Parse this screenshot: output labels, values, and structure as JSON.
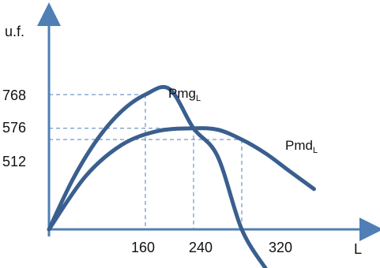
{
  "chart_data": {
    "type": "line",
    "ylabel": "u.f.",
    "xlabel": "L",
    "x_ticks": [
      "160",
      "240",
      "320"
    ],
    "y_ticks": [
      "512",
      "576",
      "768"
    ],
    "colors": {
      "curve": "#3a5f8f",
      "axis": "#4f7fb5",
      "guide": "#4f7fb5"
    },
    "series": [
      {
        "name": "Pmg",
        "subscript": "L",
        "points": [
          [
            0,
            0
          ],
          [
            40,
            288
          ],
          [
            80,
            512
          ],
          [
            120,
            672
          ],
          [
            160,
            768
          ],
          [
            200,
            800
          ],
          [
            240,
            576
          ],
          [
            280,
            416
          ],
          [
            320,
            0
          ],
          [
            360,
            -224
          ]
        ]
      },
      {
        "name": "Pmd",
        "subscript": "L",
        "points": [
          [
            0,
            0
          ],
          [
            60,
            300
          ],
          [
            120,
            480
          ],
          [
            180,
            560
          ],
          [
            240,
            576
          ],
          [
            280,
            568
          ],
          [
            320,
            512
          ],
          [
            360,
            432
          ],
          [
            400,
            330
          ],
          [
            440,
            230
          ]
        ]
      }
    ],
    "guides": [
      {
        "x": 160,
        "y": 768
      },
      {
        "x": 240,
        "y": 576
      },
      {
        "x": 320,
        "y": 512
      }
    ],
    "grid": false,
    "legend": "none"
  }
}
